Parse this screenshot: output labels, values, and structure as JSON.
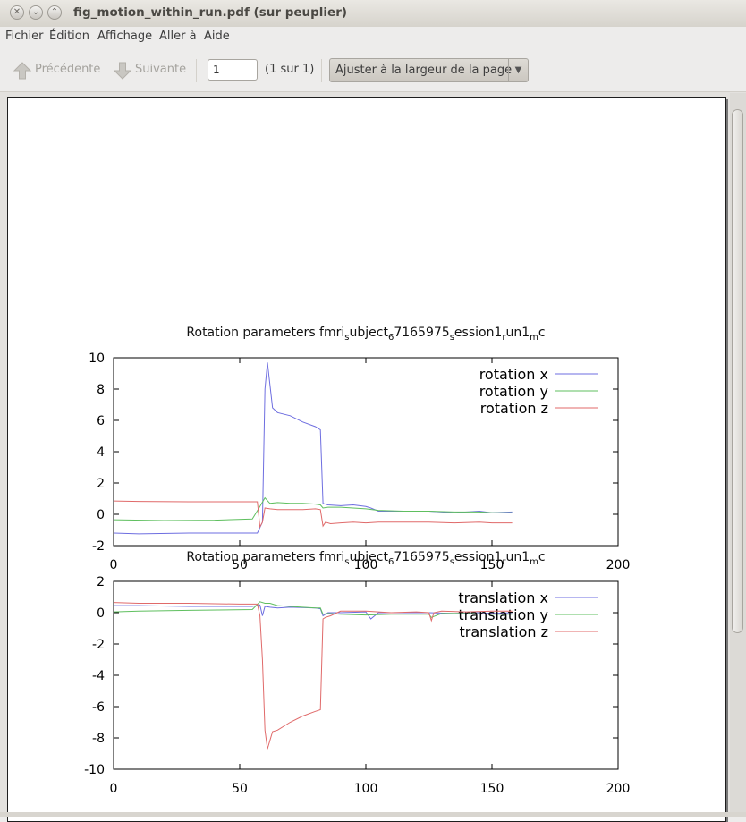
{
  "window": {
    "title": "fig_motion_within_run.pdf (sur peuplier)"
  },
  "menubar": {
    "items": [
      "Fichier",
      "Édition",
      "Affichage",
      "Aller à",
      "Aide"
    ]
  },
  "toolbar": {
    "prev_label": "Précédente",
    "next_label": "Suivante",
    "page_value": "1",
    "page_count": "(1 sur 1)",
    "zoom_label": "Ajuster à la largeur de la page",
    "prev_icon": "up-arrow-icon",
    "next_icon": "down-arrow-icon"
  },
  "colors": {
    "rotation_x": "#6e6ee0",
    "rotation_y": "#5fbf5f",
    "rotation_z": "#e06a6a"
  },
  "chart_data": [
    {
      "type": "line",
      "title": "Rotation parameters fmri_subject_67165975_session1_run1_mc",
      "title_parts": {
        "a": "Rotation parameters fmri",
        "b": "s",
        "c": "ubject",
        "d": "6",
        "e": "7165975",
        "f": "s",
        "g": "ession1",
        "h": "r",
        "i": "un1",
        "j": "m",
        "k": "c"
      },
      "xlim": [
        0,
        200
      ],
      "ylim": [
        -2,
        10
      ],
      "xticks": [
        "0",
        "50",
        "100",
        "150",
        "200"
      ],
      "yticks": [
        "10",
        "8",
        "6",
        "4",
        "2",
        "0",
        "-2"
      ],
      "legend": "top-right",
      "series": [
        {
          "name": "rotation x",
          "x": [
            0,
            10,
            30,
            57,
            59,
            60,
            61,
            63,
            65,
            70,
            75,
            80,
            81,
            82,
            83,
            85,
            90,
            95,
            100,
            102,
            105,
            115,
            125,
            135,
            145,
            150,
            158
          ],
          "y": [
            -1.2,
            -1.25,
            -1.2,
            -1.2,
            -0.5,
            8.0,
            9.7,
            6.8,
            6.5,
            6.3,
            5.9,
            5.6,
            5.5,
            5.4,
            0.7,
            0.6,
            0.55,
            0.6,
            0.5,
            0.4,
            0.2,
            0.2,
            0.2,
            0.1,
            0.2,
            0.1,
            0.15
          ]
        },
        {
          "name": "rotation y",
          "x": [
            0,
            20,
            40,
            55,
            58,
            60,
            62,
            65,
            70,
            75,
            80,
            82,
            83,
            85,
            90,
            95,
            100,
            105,
            115,
            125,
            135,
            145,
            150,
            158
          ],
          "y": [
            -0.35,
            -0.4,
            -0.38,
            -0.3,
            0.5,
            1.05,
            0.7,
            0.75,
            0.7,
            0.7,
            0.65,
            0.6,
            0.4,
            0.45,
            0.45,
            0.4,
            0.35,
            0.25,
            0.2,
            0.2,
            0.15,
            0.15,
            0.1,
            0.1
          ]
        },
        {
          "name": "rotation z",
          "x": [
            0,
            10,
            30,
            50,
            57,
            58,
            59,
            60,
            62,
            65,
            70,
            75,
            80,
            82,
            83,
            84,
            86,
            90,
            95,
            100,
            105,
            115,
            125,
            135,
            145,
            150,
            158
          ],
          "y": [
            0.85,
            0.82,
            0.8,
            0.8,
            0.8,
            -0.8,
            -0.5,
            0.4,
            0.35,
            0.3,
            0.3,
            0.3,
            0.35,
            0.3,
            -0.75,
            -0.5,
            -0.6,
            -0.55,
            -0.5,
            -0.55,
            -0.5,
            -0.5,
            -0.5,
            -0.55,
            -0.5,
            -0.55,
            -0.55
          ]
        }
      ]
    },
    {
      "type": "line",
      "title": "Rotation parameters fmri_subject_67165975_session1_run1_mc",
      "title_parts": {
        "a": "Rotation parameters fmri",
        "b": "s",
        "c": "ubject",
        "d": "6",
        "e": "7165975",
        "f": "s",
        "g": "ession1",
        "h": "r",
        "i": "un1",
        "j": "m",
        "k": "c"
      },
      "xlim": [
        0,
        200
      ],
      "ylim": [
        -10,
        2
      ],
      "xticks": [
        "0",
        "50",
        "100",
        "150",
        "200"
      ],
      "yticks": [
        "2",
        "0",
        "-2",
        "-4",
        "-6",
        "-8",
        "-10"
      ],
      "legend": "top-right",
      "series": [
        {
          "name": "translation x",
          "x": [
            0,
            10,
            30,
            55,
            58,
            59,
            60,
            62,
            65,
            70,
            80,
            82,
            83,
            85,
            90,
            100,
            102,
            105,
            115,
            125,
            135,
            145,
            150,
            158
          ],
          "y": [
            0.45,
            0.45,
            0.4,
            0.4,
            0.5,
            -0.2,
            0.4,
            0.35,
            0.3,
            0.35,
            0.3,
            0.25,
            -0.2,
            0.0,
            0.0,
            0.05,
            -0.4,
            0.0,
            0.0,
            0.0,
            -0.05,
            0.0,
            -0.05,
            0.0
          ]
        },
        {
          "name": "translation y",
          "x": [
            0,
            10,
            30,
            55,
            58,
            60,
            62,
            65,
            70,
            80,
            82,
            83,
            85,
            90,
            100,
            110,
            120,
            125,
            126,
            130,
            140,
            150,
            158
          ],
          "y": [
            0.05,
            0.1,
            0.15,
            0.2,
            0.7,
            0.6,
            0.6,
            0.45,
            0.4,
            0.3,
            0.3,
            -0.1,
            -0.05,
            -0.1,
            -0.15,
            -0.1,
            -0.1,
            -0.1,
            -0.3,
            -0.05,
            -0.05,
            -0.1,
            -0.1
          ]
        },
        {
          "name": "translation z",
          "x": [
            0,
            10,
            30,
            50,
            57,
            58,
            59,
            60,
            61,
            63,
            65,
            70,
            75,
            80,
            82,
            83,
            84,
            86,
            90,
            100,
            110,
            120,
            125,
            126,
            127,
            130,
            140,
            150,
            158
          ],
          "y": [
            0.65,
            0.6,
            0.6,
            0.55,
            0.55,
            -0.2,
            -3.0,
            -7.5,
            -8.7,
            -7.6,
            -7.5,
            -7.0,
            -6.6,
            -6.3,
            -6.2,
            -0.4,
            -0.3,
            -0.2,
            0.1,
            0.1,
            0.0,
            0.05,
            0.0,
            -0.5,
            0.0,
            0.1,
            0.05,
            0.1,
            0.1
          ]
        }
      ]
    }
  ]
}
